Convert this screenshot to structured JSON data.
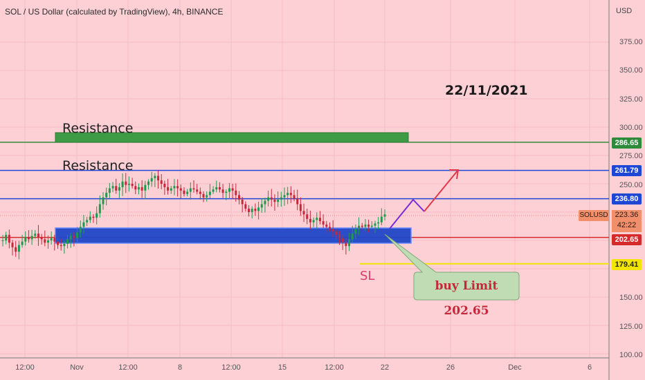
{
  "header": {
    "title": "SOL / US Dollar (calculated by TradingView), 4h, BINANCE"
  },
  "currency": "USD",
  "annotations": {
    "date": "22/11/2021",
    "resistance_upper": "Resistance",
    "resistance_lower": "Resistance",
    "stop_loss": "SL",
    "callout": "buy Limit 202.65"
  },
  "symbol_tag": "SOLUSD",
  "last_price": {
    "value": "223.36",
    "countdown": "42:22"
  },
  "price_labels": {
    "green": "286.65",
    "blue_top": "261.79",
    "blue_mid": "236.80",
    "red": "202.65",
    "yellow": "179.41"
  },
  "colors": {
    "background": "#fdd0d5",
    "green": "#2e8b3a",
    "blue": "#1f47d6",
    "red": "#d42a2a",
    "yellow": "#f2e600",
    "purple": "#7a2bd8",
    "arrow_red": "#e03848",
    "candle_green": "#1f9a4c",
    "candle_red": "#c4283a"
  },
  "y_axis": {
    "ticks": [
      "375.00",
      "350.00",
      "325.00",
      "300.00",
      "275.00",
      "250.00",
      "150.00",
      "125.00",
      "100.00"
    ]
  },
  "x_axis": {
    "ticks": [
      "12:00",
      "Nov",
      "12:00",
      "8",
      "12:00",
      "15",
      "12:00",
      "22",
      "26",
      "Dec",
      "6"
    ]
  },
  "chart_data": {
    "type": "candlestick",
    "symbol": "SOLUSD",
    "interval": "4h",
    "price_range": [
      100,
      390
    ],
    "horizontal_levels": [
      286.65,
      261.79,
      236.8,
      202.65,
      179.41
    ],
    "close_series": [
      200,
      205,
      198,
      194,
      190,
      196,
      199,
      203,
      201,
      204,
      206,
      203,
      201,
      198,
      200,
      202,
      199,
      196,
      195,
      197,
      201,
      204,
      202,
      207,
      212,
      216,
      218,
      221,
      220,
      224,
      232,
      238,
      242,
      246,
      248,
      244,
      247,
      252,
      249,
      250,
      248,
      245,
      247,
      244,
      249,
      252,
      255,
      257,
      253,
      250,
      247,
      244,
      246,
      248,
      246,
      244,
      241,
      243,
      246,
      245,
      243,
      241,
      238,
      240,
      243,
      245,
      247,
      245,
      242,
      243,
      246,
      244,
      240,
      236,
      232,
      228,
      225,
      228,
      226,
      229,
      232,
      235,
      238,
      236,
      234,
      236,
      238,
      240,
      242,
      240,
      237,
      232,
      226,
      223,
      219,
      216,
      218,
      220,
      217,
      214,
      212,
      210,
      208,
      205,
      202,
      198,
      195,
      201,
      206,
      210,
      213,
      212,
      214,
      212,
      213,
      215,
      216,
      221,
      223
    ]
  }
}
